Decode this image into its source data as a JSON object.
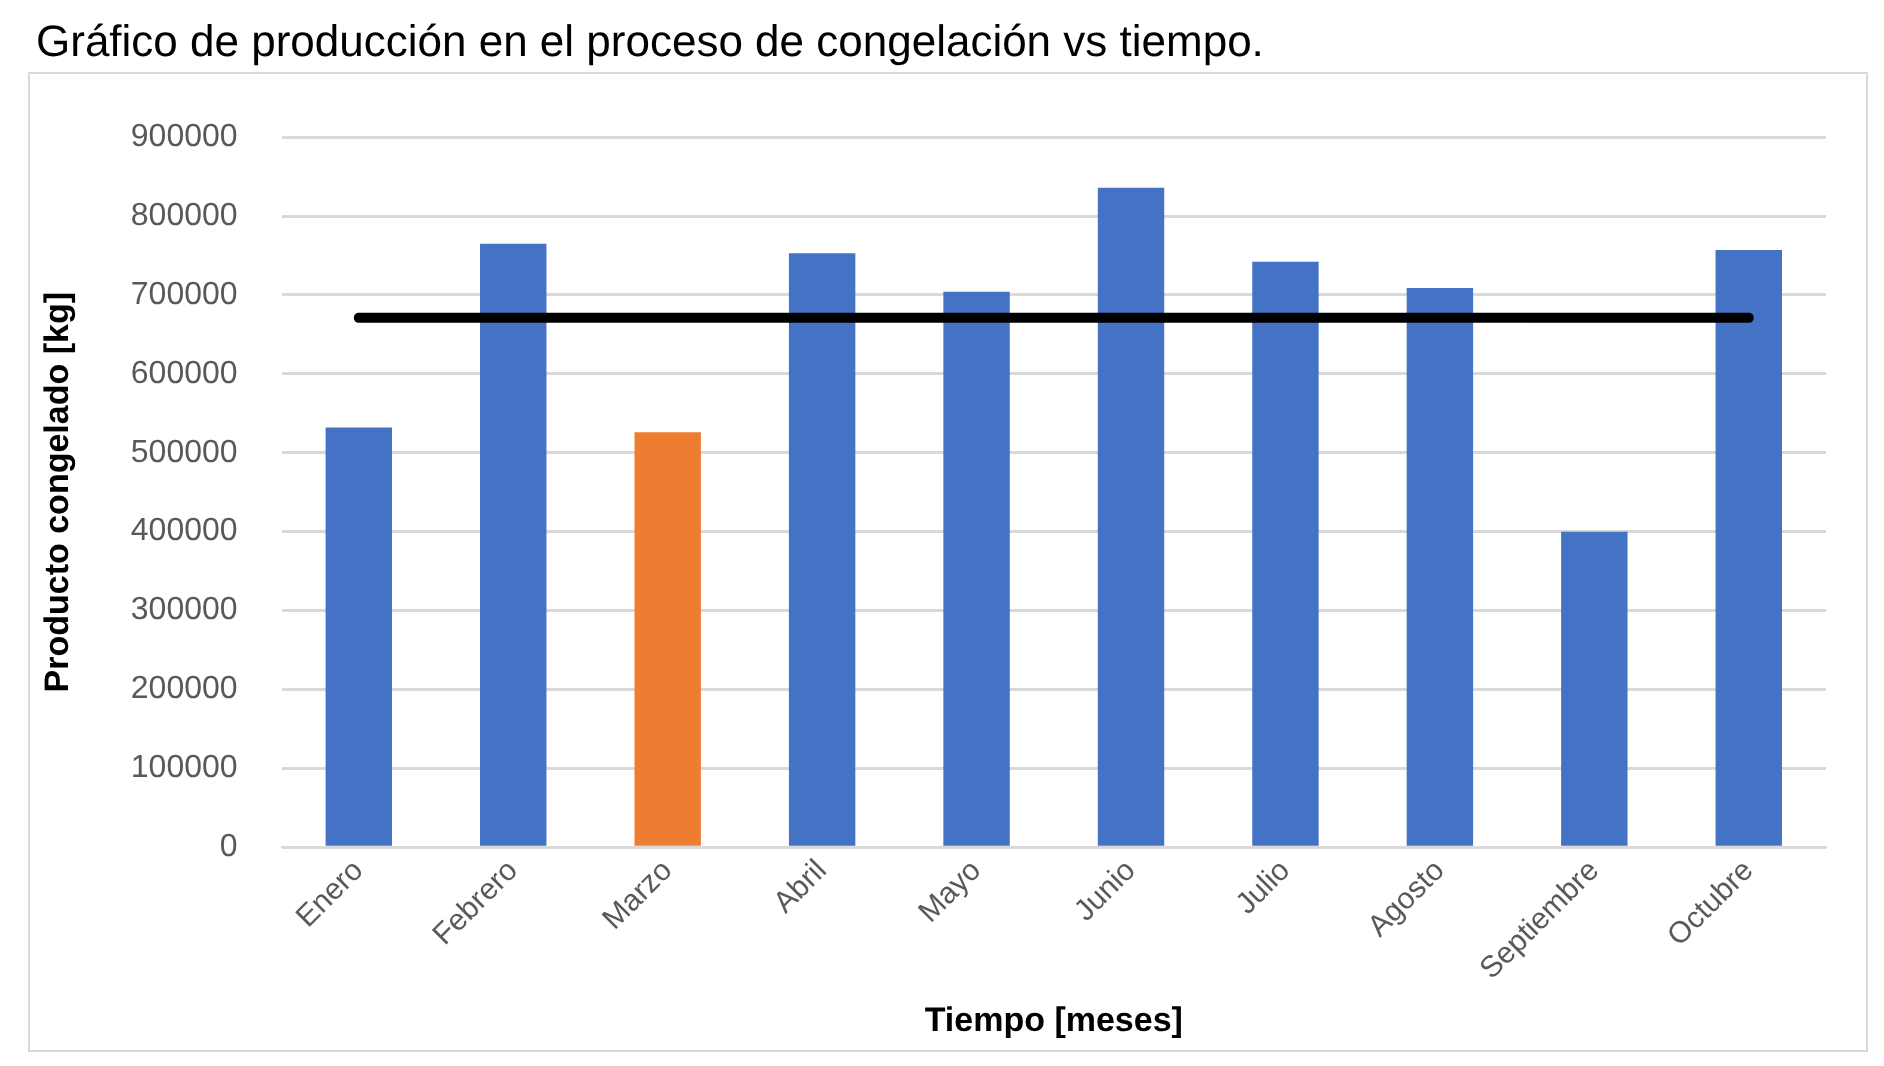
{
  "chart_data": {
    "type": "bar",
    "title": "Gráfico de producción en el proceso de congelación vs tiempo.",
    "xlabel": "Tiempo [meses]",
    "ylabel": "Producto congelado [kg]",
    "categories": [
      "Enero",
      "Febrero",
      "Marzo",
      "Abril",
      "Mayo",
      "Junio",
      "Julio",
      "Agosto",
      "Septiembre",
      "Octubre"
    ],
    "series": [
      {
        "type": "bar",
        "colors": [
          "#4472c4",
          "#4472c4",
          "#ed7d31",
          "#4472c4",
          "#4472c4",
          "#4472c4",
          "#4472c4",
          "#4472c4",
          "#4472c4",
          "#4472c4"
        ],
        "values": [
          532000,
          765000,
          526000,
          753000,
          704000,
          836000,
          742000,
          709000,
          400000,
          757000
        ]
      },
      {
        "type": "line",
        "color": "#000000",
        "values": [
          671000,
          671000,
          671000,
          671000,
          671000,
          671000,
          671000,
          671000,
          671000,
          671000
        ]
      }
    ],
    "ylim": [
      0,
      900000
    ],
    "yticks": [
      0,
      100000,
      200000,
      300000,
      400000,
      500000,
      600000,
      700000,
      800000,
      900000
    ],
    "grid": "y",
    "legend": false,
    "marker": "none",
    "line_style": "solid"
  }
}
